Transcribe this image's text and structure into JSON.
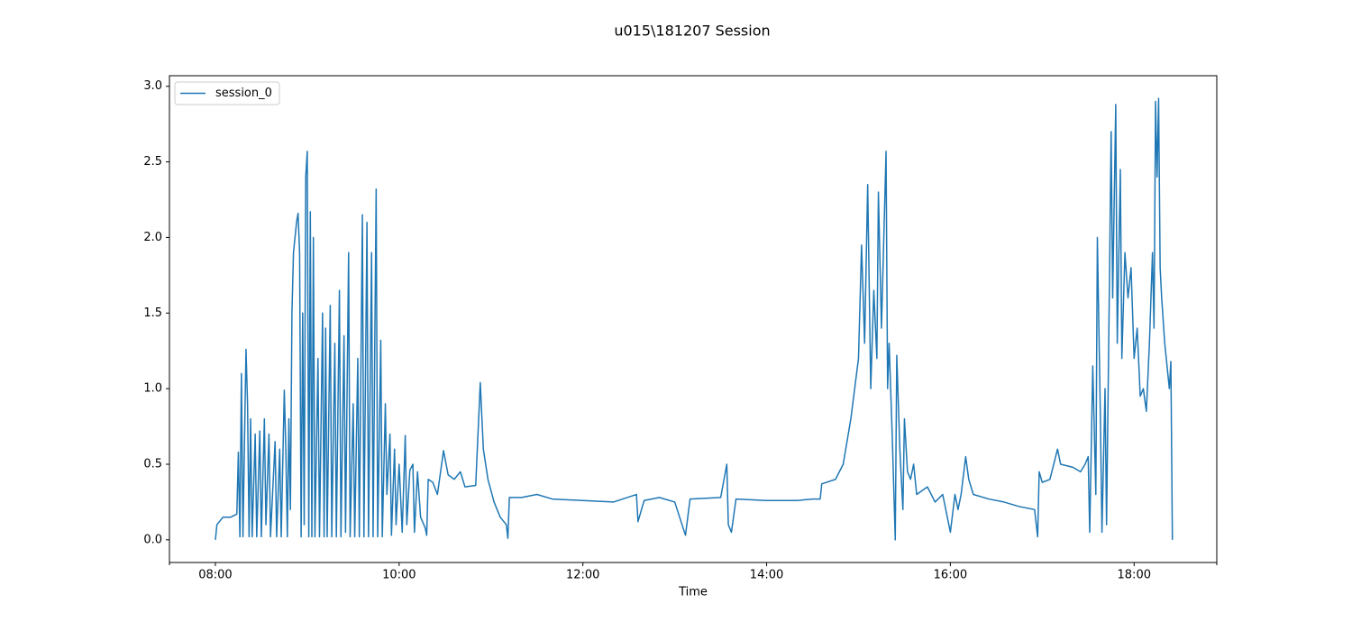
{
  "chart_data": {
    "type": "line",
    "title": "u015\\181207 Session",
    "x_label": "Time",
    "x": [
      "08:00",
      "08:01",
      "08:05",
      "08:10",
      "08:14",
      "08:15",
      "08:16",
      "08:17",
      "08:18",
      "08:20",
      "08:21",
      "08:22",
      "08:23",
      "08:24",
      "08:26",
      "08:27",
      "08:29",
      "08:30",
      "08:32",
      "08:33",
      "08:35",
      "08:36",
      "08:39",
      "08:40",
      "08:42",
      "08:43",
      "08:45",
      "08:46",
      "08:47",
      "08:48",
      "08:49",
      "08:50",
      "08:51",
      "08:53",
      "08:54",
      "08:55",
      "08:56",
      "08:57",
      "08:58",
      "08:59",
      "09:00",
      "09:01",
      "09:02",
      "09:03",
      "09:04",
      "09:05",
      "09:07",
      "09:08",
      "09:10",
      "09:11",
      "09:12",
      "09:13",
      "09:15",
      "09:16",
      "09:18",
      "09:19",
      "09:21",
      "09:22",
      "09:24",
      "09:25",
      "09:27",
      "09:28",
      "09:30",
      "09:31",
      "09:33",
      "09:34",
      "09:36",
      "09:37",
      "09:39",
      "09:40",
      "09:42",
      "09:43",
      "09:45",
      "09:46",
      "09:48",
      "09:49",
      "09:51",
      "09:52",
      "09:54",
      "09:55",
      "09:57",
      "09:58",
      "10:00",
      "10:02",
      "10:04",
      "10:05",
      "10:07",
      "10:09",
      "10:10",
      "10:12",
      "10:14",
      "10:17",
      "10:18",
      "10:19",
      "10:22",
      "10:25",
      "10:29",
      "10:32",
      "10:36",
      "10:40",
      "10:43",
      "10:50",
      "10:53",
      "10:55",
      "10:58",
      "11:02",
      "11:06",
      "11:10",
      "11:11",
      "11:12",
      "11:20",
      "11:30",
      "11:40",
      "12:00",
      "12:20",
      "12:35",
      "12:36",
      "12:40",
      "12:50",
      "13:00",
      "13:07",
      "13:10",
      "13:30",
      "13:34",
      "13:35",
      "13:37",
      "13:40",
      "14:00",
      "14:20",
      "14:30",
      "14:35",
      "14:36",
      "14:45",
      "14:50",
      "14:55",
      "15:00",
      "15:02",
      "15:04",
      "15:06",
      "15:08",
      "15:10",
      "15:12",
      "15:13",
      "15:15",
      "15:18",
      "15:19",
      "15:20",
      "15:22",
      "15:24",
      "15:25",
      "15:27",
      "15:29",
      "15:30",
      "15:32",
      "15:34",
      "15:36",
      "15:38",
      "15:45",
      "15:50",
      "15:55",
      "16:00",
      "16:03",
      "16:05",
      "16:07",
      "16:10",
      "16:12",
      "16:15",
      "16:25",
      "16:35",
      "16:45",
      "16:55",
      "16:57",
      "16:58",
      "17:00",
      "17:05",
      "17:10",
      "17:12",
      "17:20",
      "17:25",
      "17:28",
      "17:30",
      "17:31",
      "17:33",
      "17:35",
      "17:36",
      "17:38",
      "17:39",
      "17:41",
      "17:42",
      "17:44",
      "17:45",
      "17:46",
      "17:48",
      "17:49",
      "17:51",
      "17:52",
      "17:54",
      "17:56",
      "17:58",
      "18:00",
      "18:02",
      "18:04",
      "18:06",
      "18:08",
      "18:10",
      "18:12",
      "18:13",
      "18:14",
      "18:15",
      "18:16",
      "18:17",
      "18:18",
      "18:20",
      "18:22",
      "18:23",
      "18:24",
      "18:25"
    ],
    "series": [
      {
        "name": "session_0",
        "color": "#1f77b4",
        "values": [
          0.0,
          0.1,
          0.15,
          0.15,
          0.17,
          0.58,
          0.02,
          1.1,
          0.02,
          1.26,
          0.9,
          0.02,
          0.8,
          0.02,
          0.7,
          0.02,
          0.72,
          0.02,
          0.8,
          0.1,
          0.7,
          0.02,
          0.65,
          0.02,
          0.6,
          0.02,
          0.99,
          0.6,
          0.02,
          0.8,
          0.2,
          1.5,
          1.9,
          2.1,
          2.16,
          1.9,
          0.02,
          1.5,
          0.1,
          2.4,
          2.57,
          0.02,
          2.17,
          0.02,
          2.0,
          0.02,
          1.2,
          0.02,
          1.5,
          0.02,
          1.4,
          0.02,
          1.55,
          0.02,
          1.3,
          0.02,
          1.65,
          0.02,
          1.35,
          0.05,
          1.9,
          0.02,
          0.9,
          0.02,
          1.2,
          0.02,
          2.15,
          0.02,
          2.1,
          0.02,
          1.9,
          0.02,
          2.32,
          0.02,
          1.32,
          0.02,
          0.9,
          0.3,
          0.7,
          0.03,
          0.6,
          0.1,
          0.5,
          0.05,
          0.69,
          0.1,
          0.46,
          0.5,
          0.05,
          0.45,
          0.15,
          0.08,
          0.03,
          0.4,
          0.38,
          0.3,
          0.59,
          0.43,
          0.4,
          0.45,
          0.35,
          0.36,
          1.04,
          0.6,
          0.4,
          0.25,
          0.15,
          0.1,
          0.01,
          0.28,
          0.28,
          0.3,
          0.27,
          0.26,
          0.25,
          0.3,
          0.12,
          0.26,
          0.28,
          0.25,
          0.03,
          0.27,
          0.28,
          0.5,
          0.1,
          0.05,
          0.27,
          0.26,
          0.26,
          0.27,
          0.27,
          0.37,
          0.4,
          0.5,
          0.8,
          1.2,
          1.95,
          1.3,
          2.35,
          1.0,
          1.65,
          1.2,
          2.3,
          1.4,
          2.57,
          1.0,
          1.3,
          0.7,
          0.0,
          1.22,
          0.6,
          0.2,
          0.8,
          0.45,
          0.4,
          0.5,
          0.3,
          0.35,
          0.25,
          0.3,
          0.05,
          0.3,
          0.2,
          0.3,
          0.55,
          0.4,
          0.3,
          0.27,
          0.25,
          0.22,
          0.2,
          0.02,
          0.45,
          0.38,
          0.4,
          0.6,
          0.5,
          0.48,
          0.45,
          0.5,
          0.55,
          0.05,
          1.15,
          0.3,
          2.0,
          0.8,
          0.05,
          1.0,
          0.1,
          1.8,
          2.7,
          1.6,
          2.88,
          1.3,
          2.45,
          1.2,
          1.9,
          1.6,
          1.8,
          1.2,
          1.4,
          0.95,
          1.0,
          0.85,
          1.3,
          1.9,
          1.4,
          2.9,
          2.4,
          2.92,
          1.8,
          1.6,
          1.3,
          1.1,
          1.0,
          1.18,
          0.0
        ]
      }
    ],
    "xlim": [
      "07:30",
      "18:54"
    ],
    "xticks": [
      "08:00",
      "10:00",
      "12:00",
      "14:00",
      "16:00",
      "18:00"
    ],
    "ylim": [
      -0.15,
      3.07
    ],
    "yticks": [
      {
        "value": 0,
        "label": "0.0"
      },
      0.5,
      {
        "value": 1,
        "label": "1.0"
      },
      1.5,
      {
        "value": 2,
        "label": "2.0"
      },
      2.5,
      {
        "value": 3,
        "label": "3.0"
      }
    ],
    "grid": false,
    "legend": "upper left"
  }
}
